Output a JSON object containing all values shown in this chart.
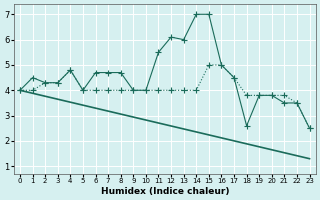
{
  "xlabel": "Humidex (Indice chaleur)",
  "ylabel": "",
  "background_color": "#d6f0f0",
  "line_color": "#1a6b5a",
  "xlim": [
    -0.5,
    23.5
  ],
  "ylim": [
    0.7,
    7.4
  ],
  "yticks": [
    1,
    2,
    3,
    4,
    5,
    6,
    7
  ],
  "xticks": [
    0,
    1,
    2,
    3,
    4,
    5,
    6,
    7,
    8,
    9,
    10,
    11,
    12,
    13,
    14,
    15,
    16,
    17,
    18,
    19,
    20,
    21,
    22,
    23
  ],
  "line1_x": [
    0,
    1,
    2,
    3,
    4,
    5,
    6,
    7,
    8,
    9,
    10,
    11,
    12,
    13,
    14,
    15,
    16,
    17,
    18,
    19,
    20,
    21,
    22,
    23
  ],
  "line1_y": [
    4.0,
    4.5,
    4.3,
    4.3,
    4.8,
    4.0,
    4.7,
    4.7,
    4.7,
    4.0,
    4.0,
    5.5,
    6.1,
    6.0,
    7.0,
    7.0,
    5.0,
    4.5,
    2.6,
    3.8,
    3.8,
    3.5,
    3.5,
    2.5
  ],
  "line2_x": [
    0,
    1,
    2,
    3,
    4,
    5,
    6,
    7,
    8,
    9,
    10,
    11,
    12,
    13,
    14,
    15,
    16,
    17,
    18,
    19,
    20,
    21,
    22,
    23
  ],
  "line2_y": [
    4.0,
    4.0,
    4.3,
    4.3,
    4.8,
    4.0,
    4.0,
    4.0,
    4.0,
    4.0,
    4.0,
    4.0,
    4.0,
    4.0,
    4.0,
    5.0,
    5.0,
    4.5,
    3.8,
    3.8,
    3.8,
    3.8,
    3.5,
    2.5
  ],
  "line3_x": [
    0,
    23
  ],
  "line3_y": [
    4.0,
    1.3
  ]
}
